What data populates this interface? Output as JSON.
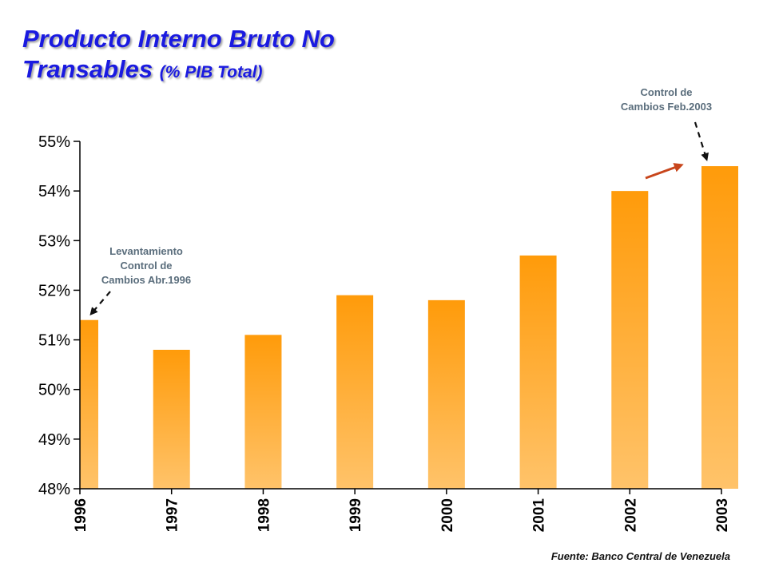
{
  "title": {
    "main_line1": "Producto Interno Bruto No",
    "main_line2": "Transables",
    "unit": "(% PIB Total)"
  },
  "annotations": {
    "control_2003": [
      "Control de",
      "Cambios Feb.2003"
    ],
    "levantamiento_1996": [
      "Levantamiento",
      "Control de",
      "Cambios Abr.1996"
    ]
  },
  "source": "Fuente: Banco Central de Venezuela",
  "colors": {
    "title": "#1a1ae0",
    "bar_top": "#ff9b0a",
    "bar_bottom": "#ffc36a",
    "trend_arrow": "#c8461c",
    "annotation_text": "#5a6d7c"
  },
  "chart_data": {
    "type": "bar",
    "title": "Producto Interno Bruto No Transables (% PIB Total)",
    "xlabel": "",
    "ylabel": "",
    "categories": [
      "1996",
      "1997",
      "1998",
      "1999",
      "2000",
      "2001",
      "2002",
      "2003"
    ],
    "values": [
      51.4,
      50.8,
      51.1,
      51.9,
      51.8,
      52.7,
      54.0,
      54.5
    ],
    "ylim": [
      48,
      55
    ],
    "yticks": [
      48,
      49,
      50,
      51,
      52,
      53,
      54,
      55
    ],
    "ytick_labels": [
      "48%",
      "49%",
      "50%",
      "51%",
      "52%",
      "53%",
      "54%",
      "55%"
    ],
    "grid": false,
    "legend": "none"
  }
}
